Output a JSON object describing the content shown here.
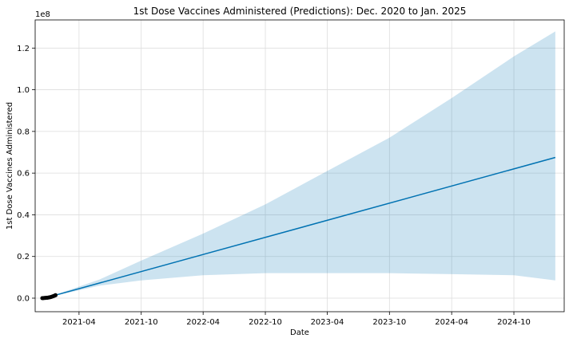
{
  "chart_data": {
    "type": "line",
    "title": "1st Dose Vaccines Administered (Predictions): Dec. 2020 to Jan. 2025",
    "xlabel": "Date",
    "ylabel": "1st Dose Vaccines Administered",
    "y_offset_label": "1e8",
    "x_range": [
      "2020-11-23",
      "2025-02-26"
    ],
    "ylim": [
      -0.065,
      1.335
    ],
    "y_scale_note": "values in units of 1e8",
    "grid": true,
    "x_ticks": [
      {
        "date": "2021-04-01",
        "label": "2021-04"
      },
      {
        "date": "2021-10-01",
        "label": "2021-10"
      },
      {
        "date": "2022-04-01",
        "label": "2022-04"
      },
      {
        "date": "2022-10-01",
        "label": "2022-10"
      },
      {
        "date": "2023-04-01",
        "label": "2023-04"
      },
      {
        "date": "2023-10-01",
        "label": "2023-10"
      },
      {
        "date": "2024-04-01",
        "label": "2024-04"
      },
      {
        "date": "2024-10-01",
        "label": "2024-10"
      }
    ],
    "y_ticks": [
      {
        "value": 0.0,
        "label": "0.0"
      },
      {
        "value": 0.2,
        "label": "0.2"
      },
      {
        "value": 0.4,
        "label": "0.4"
      },
      {
        "value": 0.6,
        "label": "0.6"
      },
      {
        "value": 0.8,
        "label": "0.8"
      },
      {
        "value": 1.0,
        "label": "1.0"
      },
      {
        "value": 1.2,
        "label": "1.2"
      }
    ],
    "series": [
      {
        "kind": "forecast",
        "color": "#0072B2",
        "points": [
          {
            "x": "2021-01-01",
            "y": 0.005
          },
          {
            "x": "2025-01-31",
            "y": 0.675
          }
        ]
      },
      {
        "kind": "uncertainty_band",
        "color": "#0072B2",
        "opacity": 0.2,
        "upper": [
          {
            "x": "2021-01-01",
            "y": 0.005
          },
          {
            "x": "2021-06-01",
            "y": 0.09
          },
          {
            "x": "2021-10-01",
            "y": 0.18
          },
          {
            "x": "2022-04-01",
            "y": 0.31
          },
          {
            "x": "2022-10-01",
            "y": 0.45
          },
          {
            "x": "2023-04-01",
            "y": 0.61
          },
          {
            "x": "2023-10-01",
            "y": 0.77
          },
          {
            "x": "2024-04-01",
            "y": 0.96
          },
          {
            "x": "2024-10-01",
            "y": 1.16
          },
          {
            "x": "2025-01-31",
            "y": 1.28
          }
        ],
        "lower": [
          {
            "x": "2021-01-01",
            "y": 0.005
          },
          {
            "x": "2021-06-01",
            "y": 0.06
          },
          {
            "x": "2021-10-01",
            "y": 0.085
          },
          {
            "x": "2022-04-01",
            "y": 0.11
          },
          {
            "x": "2022-10-01",
            "y": 0.12
          },
          {
            "x": "2023-04-01",
            "y": 0.12
          },
          {
            "x": "2023-10-01",
            "y": 0.12
          },
          {
            "x": "2024-04-01",
            "y": 0.115
          },
          {
            "x": "2024-10-01",
            "y": 0.11
          },
          {
            "x": "2025-01-31",
            "y": 0.085
          }
        ]
      },
      {
        "kind": "observed",
        "color": "#000000",
        "points": [
          {
            "x": "2020-12-14",
            "y": 0.0
          },
          {
            "x": "2020-12-17",
            "y": 0.0
          },
          {
            "x": "2020-12-20",
            "y": 0.001
          },
          {
            "x": "2020-12-23",
            "y": 0.001
          },
          {
            "x": "2020-12-26",
            "y": 0.002
          },
          {
            "x": "2020-12-29",
            "y": 0.002
          },
          {
            "x": "2021-01-01",
            "y": 0.003
          },
          {
            "x": "2021-01-04",
            "y": 0.004
          },
          {
            "x": "2021-01-07",
            "y": 0.005
          },
          {
            "x": "2021-01-10",
            "y": 0.006
          },
          {
            "x": "2021-01-13",
            "y": 0.008
          },
          {
            "x": "2021-01-16",
            "y": 0.01
          },
          {
            "x": "2021-01-19",
            "y": 0.012
          },
          {
            "x": "2021-01-22",
            "y": 0.014
          }
        ]
      }
    ]
  }
}
